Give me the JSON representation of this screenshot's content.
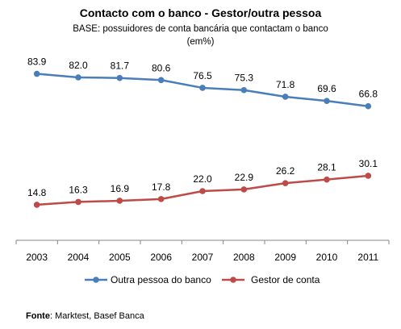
{
  "chart_data": {
    "type": "line",
    "title": "Contacto com o banco - Gestor/outra pessoa",
    "subtitle_line1": "BASE: possuidores de conta bancária que contactam o banco",
    "subtitle_line2": "(em%)",
    "x": [
      "2003",
      "2004",
      "2005",
      "2006",
      "2007",
      "2008",
      "2009",
      "2010",
      "2011"
    ],
    "series": [
      {
        "name": "Outra pessoa do banco",
        "color": "#4a7ebb",
        "values": [
          83.9,
          82.0,
          81.7,
          80.6,
          76.5,
          75.3,
          71.8,
          69.6,
          66.8
        ],
        "labels": [
          "83.9",
          "82.0",
          "81.7",
          "80.6",
          "76.5",
          "75.3",
          "71.8",
          "69.6",
          "66.8"
        ]
      },
      {
        "name": "Gestor de conta",
        "color": "#be4b48",
        "values": [
          14.8,
          16.3,
          16.9,
          17.8,
          22.0,
          22.9,
          26.2,
          28.1,
          30.1
        ],
        "labels": [
          "14.8",
          "16.3",
          "16.9",
          "17.8",
          "22.0",
          "22.9",
          "26.2",
          "28.1",
          "30.1"
        ]
      }
    ],
    "legend_position": "bottom",
    "grid": false
  },
  "source": {
    "label": "Fonte",
    "text": ": Marktest, Basef Banca"
  }
}
